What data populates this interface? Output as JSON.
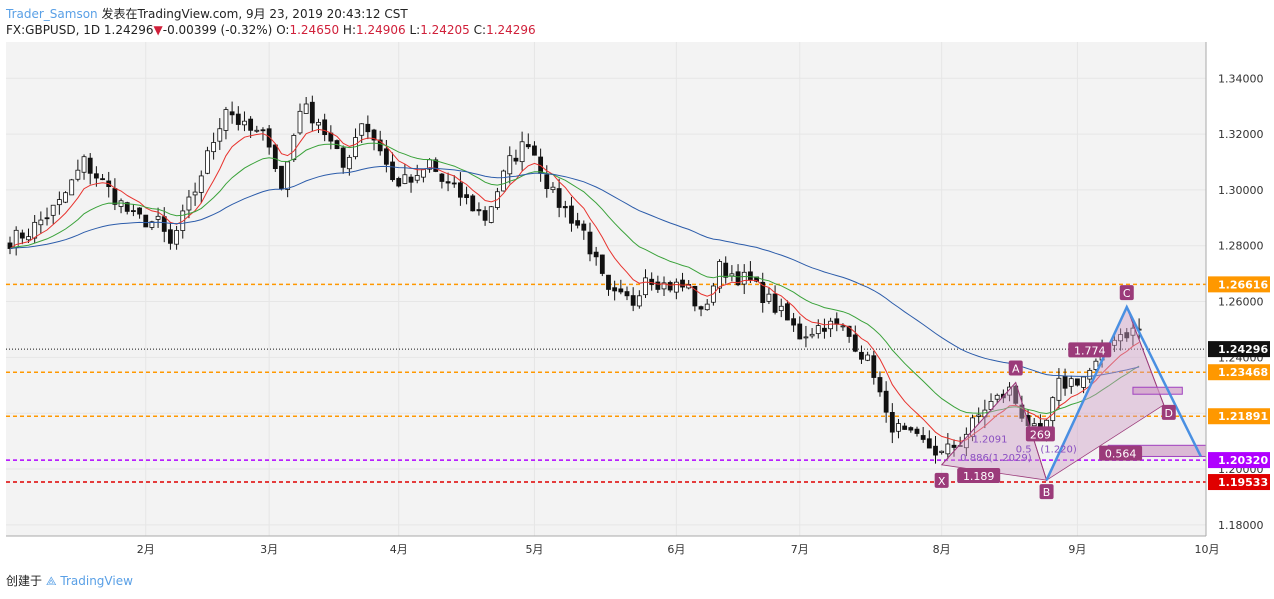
{
  "header": {
    "author": "Trader_Samson",
    "published": "发表在TradingView.com, 9月 23, 2019 20:43:12 CST",
    "symbol": "FX:GBPUSD, 1D",
    "last": "1.24296",
    "change": "-0.00399 (-0.32%)",
    "open_label": "O:",
    "open": "1.24650",
    "high_label": "H:",
    "high": "1.24906",
    "low_label": "L:",
    "low": "1.24205",
    "close_label": "C:",
    "close": "1.24296"
  },
  "footer": {
    "created_label": "创建于",
    "brand": "TradingView"
  },
  "colors": {
    "up": "#ffffff",
    "down": "#111111",
    "ema_fast": "#e8332e",
    "ema_mid": "#3aa23a",
    "ema_slow": "#2c5caa",
    "orange_level": "#ff9800",
    "purple_level": "#b000ff",
    "red_level": "#e00000",
    "pattern_fill": "#d0a0c8",
    "pattern_label": "#9b3b7a",
    "projection": "#4a90e2"
  },
  "chart_data": {
    "type": "candlestick",
    "y_range": [
      1.176,
      1.353
    ],
    "y_ticks": [
      "1.34000",
      "1.32000",
      "1.30000",
      "1.28000",
      "1.26000",
      "1.24000",
      "1.22000",
      "1.20000",
      "1.18000"
    ],
    "x_ticks": [
      "2月",
      "3月",
      "4月",
      "5月",
      "6月",
      "7月",
      "8月",
      "9月",
      "10月"
    ],
    "x_tick_bars": [
      22,
      42,
      63,
      85,
      108,
      128,
      151,
      173,
      194
    ],
    "bar_count": 184,
    "price_levels": [
      {
        "value": 1.26616,
        "label": "1.26616",
        "color": "#ff9800",
        "dash": true
      },
      {
        "value": 1.23468,
        "label": "1.23468",
        "color": "#ff9800",
        "dash": true
      },
      {
        "value": 1.21891,
        "label": "1.21891",
        "color": "#ff9800",
        "dash": true
      },
      {
        "value": 1.2032,
        "label": "1.20320",
        "color": "#b000ff",
        "dash": true
      },
      {
        "value": 1.19533,
        "label": "1.19533",
        "color": "#e00000",
        "dash": true
      }
    ],
    "last_price": {
      "value": 1.24296,
      "label": "1.24296"
    },
    "anchors": [
      [
        0,
        1.282
      ],
      [
        3,
        1.285
      ],
      [
        8,
        1.295
      ],
      [
        12,
        1.31
      ],
      [
        16,
        1.3
      ],
      [
        20,
        1.29
      ],
      [
        24,
        1.288
      ],
      [
        26,
        1.28
      ],
      [
        30,
        1.3
      ],
      [
        35,
        1.33
      ],
      [
        38,
        1.322
      ],
      [
        42,
        1.318
      ],
      [
        44,
        1.3
      ],
      [
        47,
        1.33
      ],
      [
        50,
        1.325
      ],
      [
        54,
        1.308
      ],
      [
        57,
        1.325
      ],
      [
        60,
        1.315
      ],
      [
        62,
        1.303
      ],
      [
        66,
        1.303
      ],
      [
        68,
        1.31
      ],
      [
        70,
        1.303
      ],
      [
        73,
        1.298
      ],
      [
        77,
        1.29
      ],
      [
        81,
        1.31
      ],
      [
        84,
        1.318
      ],
      [
        88,
        1.298
      ],
      [
        93,
        1.285
      ],
      [
        97,
        1.262
      ],
      [
        101,
        1.26
      ],
      [
        103,
        1.27
      ],
      [
        106,
        1.266
      ],
      [
        110,
        1.265
      ],
      [
        112,
        1.255
      ],
      [
        115,
        1.272
      ],
      [
        120,
        1.267
      ],
      [
        124,
        1.258
      ],
      [
        128,
        1.248
      ],
      [
        132,
        1.252
      ],
      [
        135,
        1.25
      ],
      [
        137,
        1.245
      ],
      [
        140,
        1.235
      ],
      [
        142,
        1.218
      ],
      [
        145,
        1.212
      ],
      [
        149,
        1.208
      ],
      [
        151,
        1.205
      ],
      [
        154,
        1.21
      ],
      [
        158,
        1.222
      ],
      [
        162,
        1.228
      ],
      [
        164,
        1.22
      ],
      [
        167,
        1.21
      ],
      [
        170,
        1.23
      ],
      [
        174,
        1.233
      ],
      [
        176,
        1.237
      ],
      [
        179,
        1.248
      ],
      [
        183,
        1.25
      ]
    ],
    "pattern": {
      "points": {
        "X": [
          1.2015,
          151
        ],
        "A": [
          1.231,
          163
        ],
        "B": [
          1.196,
          168
        ],
        "C": [
          1.258,
          181
        ],
        "D": [
          1.223,
          187
        ]
      },
      "labels": [
        "X",
        "A",
        "B",
        "C",
        "D"
      ],
      "ratios": [
        "1.189",
        "1.774",
        "0.564",
        "269"
      ],
      "fib_notes": [
        "1.2091",
        "0.886(1.2029)",
        "0.5",
        "(1.220)"
      ],
      "zones": [
        [
          1.2293,
          1.2268,
          182,
          190
        ],
        [
          1.2085,
          1.2045,
          178,
          194
        ]
      ],
      "projection": [
        [
          181,
          1.258
        ],
        [
          193,
          1.2045
        ]
      ]
    }
  }
}
